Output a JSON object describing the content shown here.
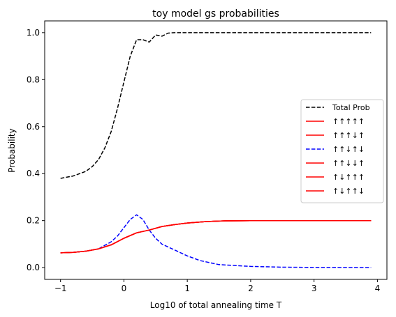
{
  "chart_data": {
    "type": "line",
    "title": "toy model gs probabilities",
    "xlabel": "Log10 of total annealing time T",
    "ylabel": "Probability",
    "xlim": [
      -1.25,
      4.15
    ],
    "ylim": [
      -0.05,
      1.05
    ],
    "xticks": [
      -1,
      0,
      1,
      2,
      3,
      4
    ],
    "yticks": [
      0.0,
      0.2,
      0.4,
      0.6,
      0.8,
      1.0
    ],
    "xtick_labels": [
      "−1",
      "0",
      "1",
      "2",
      "3",
      "4"
    ],
    "ytick_labels": [
      "0.0",
      "0.2",
      "0.4",
      "0.6",
      "0.8",
      "1.0"
    ],
    "legend_position": "center-right",
    "series": [
      {
        "name": "Total Prob",
        "color": "#000000",
        "style": "dashed",
        "x": [
          -1.0,
          -0.8,
          -0.6,
          -0.5,
          -0.4,
          -0.3,
          -0.2,
          -0.1,
          0.0,
          0.1,
          0.2,
          0.3,
          0.4,
          0.5,
          0.6,
          0.7,
          0.8,
          1.0,
          1.5,
          2.0,
          3.0,
          3.9
        ],
        "y": [
          0.38,
          0.39,
          0.41,
          0.43,
          0.46,
          0.51,
          0.58,
          0.68,
          0.79,
          0.9,
          0.97,
          0.97,
          0.96,
          0.99,
          0.985,
          0.998,
          1.0,
          1.0,
          1.0,
          1.0,
          1.0,
          1.0
        ]
      },
      {
        "name": "↑↑↑↑↑",
        "color": "#ff0000",
        "style": "solid",
        "x": [
          -1.0,
          -0.8,
          -0.6,
          -0.4,
          -0.2,
          0.0,
          0.2,
          0.4,
          0.6,
          0.8,
          1.0,
          1.3,
          1.6,
          2.0,
          3.0,
          3.9
        ],
        "y": [
          0.063,
          0.065,
          0.07,
          0.08,
          0.097,
          0.125,
          0.148,
          0.16,
          0.175,
          0.183,
          0.19,
          0.196,
          0.199,
          0.2,
          0.2,
          0.2
        ]
      },
      {
        "name": "↑↑↑↓↑",
        "color": "#ff0000",
        "style": "solid",
        "x": [
          -1.0,
          -0.8,
          -0.6,
          -0.4,
          -0.2,
          0.0,
          0.2,
          0.4,
          0.6,
          0.8,
          1.0,
          1.3,
          1.6,
          2.0,
          3.0,
          3.9
        ],
        "y": [
          0.063,
          0.065,
          0.07,
          0.08,
          0.097,
          0.125,
          0.148,
          0.16,
          0.175,
          0.183,
          0.19,
          0.196,
          0.199,
          0.2,
          0.2,
          0.2
        ]
      },
      {
        "name": "↑↑↓↑↓",
        "color": "#0000ff",
        "style": "dashed",
        "x": [
          -1.0,
          -0.8,
          -0.6,
          -0.4,
          -0.2,
          -0.1,
          0.0,
          0.1,
          0.2,
          0.3,
          0.4,
          0.5,
          0.6,
          0.8,
          1.0,
          1.2,
          1.5,
          2.0,
          2.5,
          3.0,
          3.9
        ],
        "y": [
          0.063,
          0.065,
          0.07,
          0.08,
          0.11,
          0.135,
          0.17,
          0.205,
          0.225,
          0.205,
          0.16,
          0.125,
          0.1,
          0.075,
          0.05,
          0.03,
          0.013,
          0.005,
          0.002,
          0.001,
          0.0
        ]
      },
      {
        "name": "↑↑↓↓↑",
        "color": "#ff0000",
        "style": "solid",
        "x": [
          -1.0,
          -0.8,
          -0.6,
          -0.4,
          -0.2,
          0.0,
          0.2,
          0.4,
          0.6,
          0.8,
          1.0,
          1.3,
          1.6,
          2.0,
          3.0,
          3.9
        ],
        "y": [
          0.063,
          0.065,
          0.07,
          0.08,
          0.097,
          0.125,
          0.148,
          0.16,
          0.175,
          0.183,
          0.19,
          0.196,
          0.199,
          0.2,
          0.2,
          0.2
        ]
      },
      {
        "name": "↑↓↑↑↑",
        "color": "#ff0000",
        "style": "solid",
        "x": [
          -1.0,
          -0.8,
          -0.6,
          -0.4,
          -0.2,
          0.0,
          0.2,
          0.4,
          0.6,
          0.8,
          1.0,
          1.3,
          1.6,
          2.0,
          3.0,
          3.9
        ],
        "y": [
          0.063,
          0.065,
          0.07,
          0.08,
          0.097,
          0.125,
          0.148,
          0.16,
          0.175,
          0.183,
          0.19,
          0.196,
          0.199,
          0.2,
          0.2,
          0.2
        ]
      },
      {
        "name": "↑↓↑↑↓",
        "color": "#ff0000",
        "style": "solid",
        "x": [
          -1.0,
          -0.8,
          -0.6,
          -0.4,
          -0.2,
          0.0,
          0.2,
          0.4,
          0.6,
          0.8,
          1.0,
          1.3,
          1.6,
          2.0,
          3.0,
          3.9
        ],
        "y": [
          0.063,
          0.065,
          0.07,
          0.08,
          0.097,
          0.125,
          0.148,
          0.16,
          0.175,
          0.183,
          0.19,
          0.196,
          0.199,
          0.2,
          0.2,
          0.2
        ]
      }
    ]
  }
}
